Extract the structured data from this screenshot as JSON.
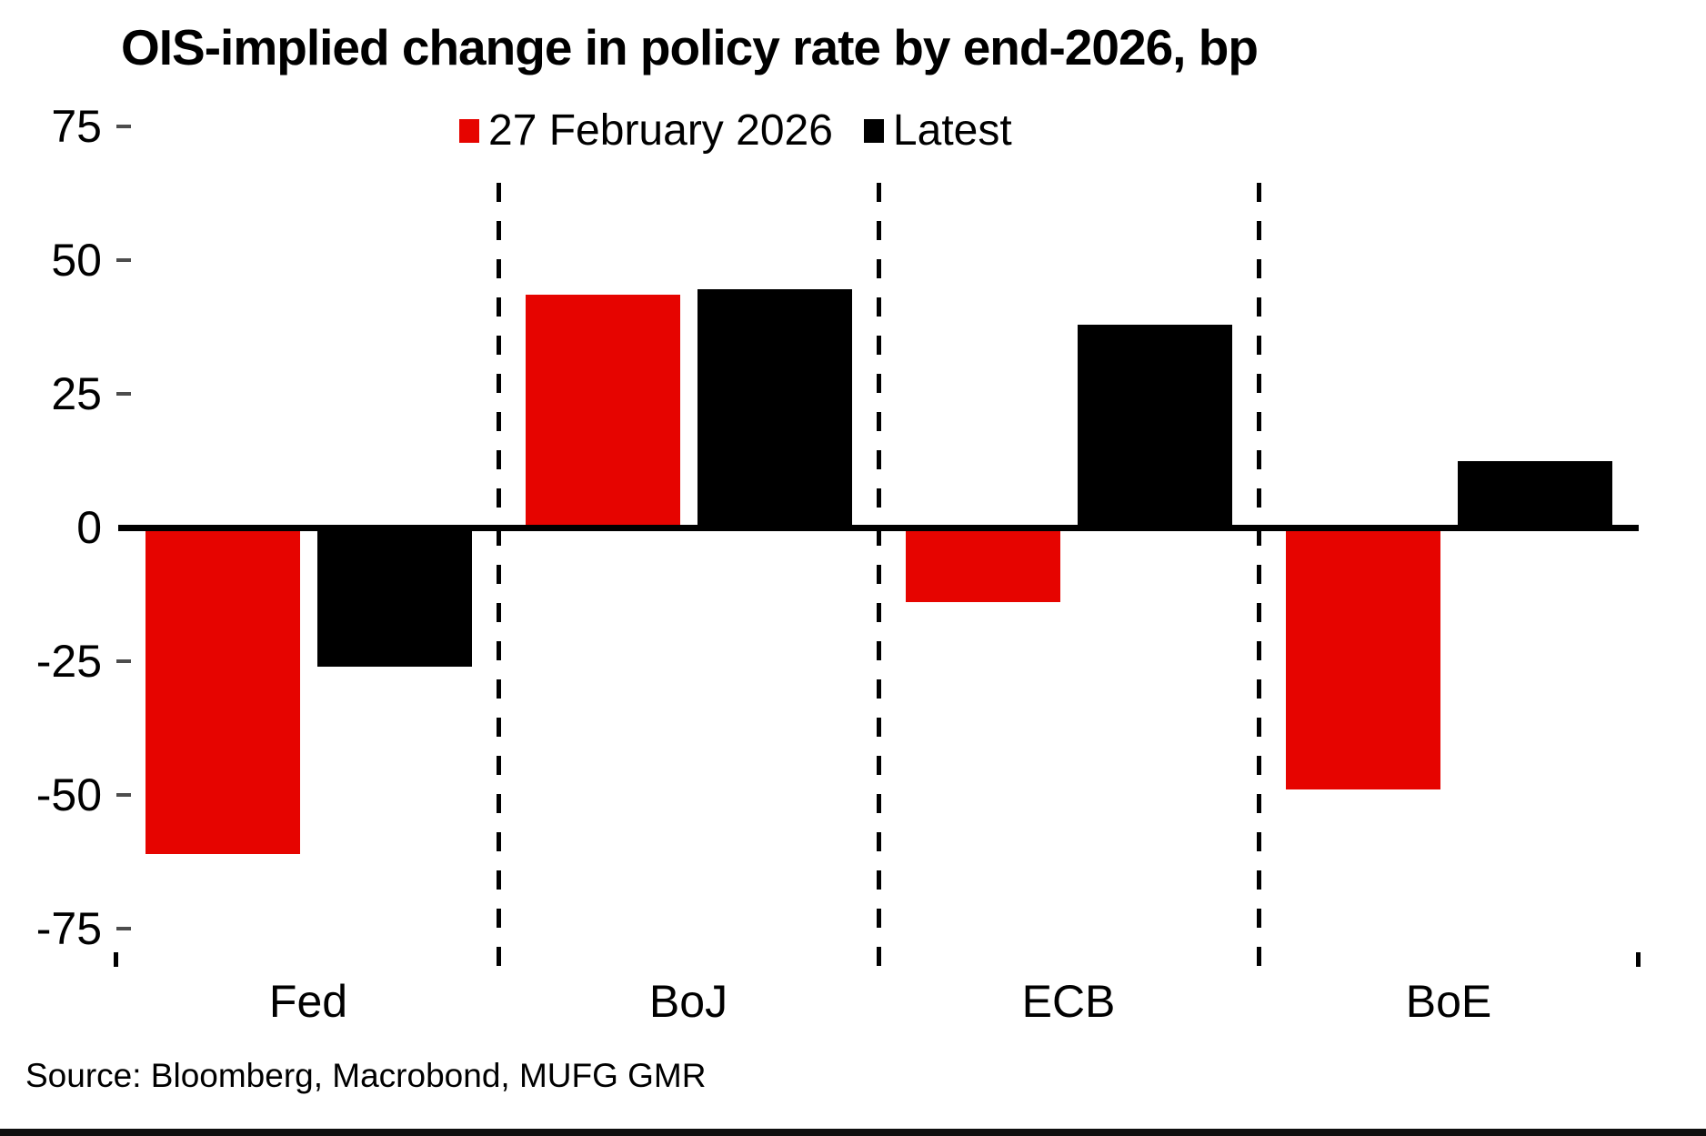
{
  "title": "OIS-implied change in policy rate by end-2026, bp",
  "legend": {
    "feb": {
      "label": "27 February 2026",
      "color": "#e60400"
    },
    "latest": {
      "label": "Latest",
      "color": "#000000"
    }
  },
  "source": "Source: Bloomberg, Macrobond, MUFG GMR",
  "chart_data": {
    "type": "bar",
    "title": "OIS-implied change in policy rate by end-2026, bp",
    "categories": [
      "Fed",
      "BoJ",
      "ECB",
      "BoE"
    ],
    "series": [
      {
        "name": "27 February 2026",
        "color": "#e60400",
        "values": [
          -61,
          43.5,
          -14,
          -49
        ]
      },
      {
        "name": "Latest",
        "color": "#000000",
        "values": [
          -26,
          44.5,
          38,
          12.5
        ]
      }
    ],
    "unit": "bp",
    "ylim": [
      -75,
      75
    ],
    "yticks": [
      75,
      50,
      25,
      0,
      -25,
      -50,
      -75
    ],
    "grid": false,
    "legend_position": "top-center",
    "category_separators": "vertical dashed black lines between central banks",
    "zero_line": true
  },
  "colors": {
    "red": "#e60400",
    "black": "#000000",
    "tick_gray": "#4d4d4d",
    "background": "#ffffff",
    "bottom_rule": "#0f0f0f"
  }
}
